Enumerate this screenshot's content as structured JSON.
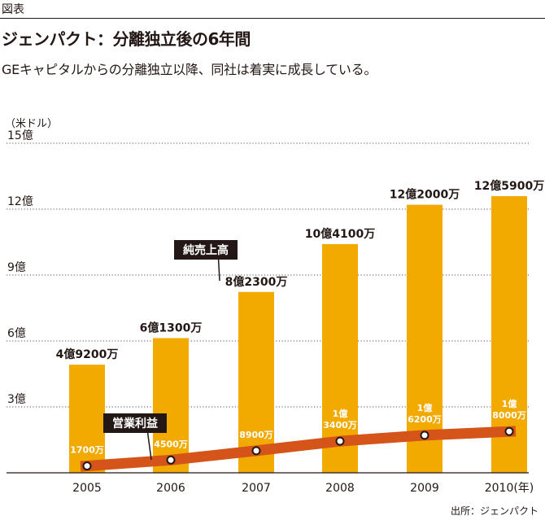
{
  "header": {
    "figure_label": "図表",
    "title": "ジェンパクト：分離独立後の6年間",
    "subtitle": "GEキャピタルからの分離独立以降、同社は着実に成長している。",
    "source": "出所：ジェンパクト"
  },
  "chart_data": {
    "type": "bar",
    "unit_label": "（米ドル）",
    "categories": [
      "2005",
      "2006",
      "2007",
      "2008",
      "2009",
      "2010(年)"
    ],
    "y_ticks": [
      {
        "value": 3,
        "label": "3億"
      },
      {
        "value": 6,
        "label": "6億"
      },
      {
        "value": 9,
        "label": "9億"
      },
      {
        "value": 12,
        "label": "12億"
      },
      {
        "value": 15,
        "label": "15億"
      }
    ],
    "ylim": [
      0,
      15
    ],
    "grid": true,
    "series": [
      {
        "name": "純売上高",
        "type": "bar",
        "values": [
          4.92,
          6.13,
          8.23,
          10.41,
          12.2,
          12.59
        ],
        "labels": [
          "4億9200万",
          "6億1300万",
          "8億2300万",
          "10億4100万",
          "12億2000万",
          "12億5900万"
        ]
      },
      {
        "name": "営業利益",
        "type": "line",
        "values": [
          0.17,
          0.45,
          0.89,
          1.34,
          1.62,
          1.8
        ],
        "labels": [
          "1700万",
          "4500万",
          "8900万",
          "1億 3400万",
          "1億 6200万",
          "1億 8000万"
        ]
      }
    ],
    "colors": {
      "bar": "#F2A900",
      "line": "#D4541A",
      "marker": "#FFFFFF",
      "legend_bg": "#231815"
    }
  }
}
